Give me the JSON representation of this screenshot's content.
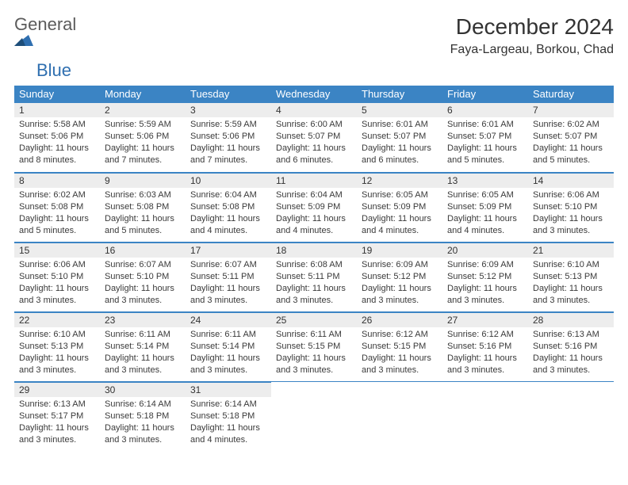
{
  "logo": {
    "part1": "General",
    "part2": "Blue"
  },
  "title": "December 2024",
  "location": "Faya-Largeau, Borkou, Chad",
  "colors": {
    "header_bg": "#3b84c4",
    "header_text": "#ffffff",
    "daynum_bg": "#ededed",
    "border": "#3b84c4",
    "text": "#3a3a3a",
    "logo_gray": "#5b5b5b",
    "logo_blue": "#2f6fb0"
  },
  "weekdays": [
    "Sunday",
    "Monday",
    "Tuesday",
    "Wednesday",
    "Thursday",
    "Friday",
    "Saturday"
  ],
  "weeks": [
    [
      {
        "n": "1",
        "sunrise": "5:58 AM",
        "sunset": "5:06 PM",
        "daylight": "11 hours and 8 minutes."
      },
      {
        "n": "2",
        "sunrise": "5:59 AM",
        "sunset": "5:06 PM",
        "daylight": "11 hours and 7 minutes."
      },
      {
        "n": "3",
        "sunrise": "5:59 AM",
        "sunset": "5:06 PM",
        "daylight": "11 hours and 7 minutes."
      },
      {
        "n": "4",
        "sunrise": "6:00 AM",
        "sunset": "5:07 PM",
        "daylight": "11 hours and 6 minutes."
      },
      {
        "n": "5",
        "sunrise": "6:01 AM",
        "sunset": "5:07 PM",
        "daylight": "11 hours and 6 minutes."
      },
      {
        "n": "6",
        "sunrise": "6:01 AM",
        "sunset": "5:07 PM",
        "daylight": "11 hours and 5 minutes."
      },
      {
        "n": "7",
        "sunrise": "6:02 AM",
        "sunset": "5:07 PM",
        "daylight": "11 hours and 5 minutes."
      }
    ],
    [
      {
        "n": "8",
        "sunrise": "6:02 AM",
        "sunset": "5:08 PM",
        "daylight": "11 hours and 5 minutes."
      },
      {
        "n": "9",
        "sunrise": "6:03 AM",
        "sunset": "5:08 PM",
        "daylight": "11 hours and 5 minutes."
      },
      {
        "n": "10",
        "sunrise": "6:04 AM",
        "sunset": "5:08 PM",
        "daylight": "11 hours and 4 minutes."
      },
      {
        "n": "11",
        "sunrise": "6:04 AM",
        "sunset": "5:09 PM",
        "daylight": "11 hours and 4 minutes."
      },
      {
        "n": "12",
        "sunrise": "6:05 AM",
        "sunset": "5:09 PM",
        "daylight": "11 hours and 4 minutes."
      },
      {
        "n": "13",
        "sunrise": "6:05 AM",
        "sunset": "5:09 PM",
        "daylight": "11 hours and 4 minutes."
      },
      {
        "n": "14",
        "sunrise": "6:06 AM",
        "sunset": "5:10 PM",
        "daylight": "11 hours and 3 minutes."
      }
    ],
    [
      {
        "n": "15",
        "sunrise": "6:06 AM",
        "sunset": "5:10 PM",
        "daylight": "11 hours and 3 minutes."
      },
      {
        "n": "16",
        "sunrise": "6:07 AM",
        "sunset": "5:10 PM",
        "daylight": "11 hours and 3 minutes."
      },
      {
        "n": "17",
        "sunrise": "6:07 AM",
        "sunset": "5:11 PM",
        "daylight": "11 hours and 3 minutes."
      },
      {
        "n": "18",
        "sunrise": "6:08 AM",
        "sunset": "5:11 PM",
        "daylight": "11 hours and 3 minutes."
      },
      {
        "n": "19",
        "sunrise": "6:09 AM",
        "sunset": "5:12 PM",
        "daylight": "11 hours and 3 minutes."
      },
      {
        "n": "20",
        "sunrise": "6:09 AM",
        "sunset": "5:12 PM",
        "daylight": "11 hours and 3 minutes."
      },
      {
        "n": "21",
        "sunrise": "6:10 AM",
        "sunset": "5:13 PM",
        "daylight": "11 hours and 3 minutes."
      }
    ],
    [
      {
        "n": "22",
        "sunrise": "6:10 AM",
        "sunset": "5:13 PM",
        "daylight": "11 hours and 3 minutes."
      },
      {
        "n": "23",
        "sunrise": "6:11 AM",
        "sunset": "5:14 PM",
        "daylight": "11 hours and 3 minutes."
      },
      {
        "n": "24",
        "sunrise": "6:11 AM",
        "sunset": "5:14 PM",
        "daylight": "11 hours and 3 minutes."
      },
      {
        "n": "25",
        "sunrise": "6:11 AM",
        "sunset": "5:15 PM",
        "daylight": "11 hours and 3 minutes."
      },
      {
        "n": "26",
        "sunrise": "6:12 AM",
        "sunset": "5:15 PM",
        "daylight": "11 hours and 3 minutes."
      },
      {
        "n": "27",
        "sunrise": "6:12 AM",
        "sunset": "5:16 PM",
        "daylight": "11 hours and 3 minutes."
      },
      {
        "n": "28",
        "sunrise": "6:13 AM",
        "sunset": "5:16 PM",
        "daylight": "11 hours and 3 minutes."
      }
    ],
    [
      {
        "n": "29",
        "sunrise": "6:13 AM",
        "sunset": "5:17 PM",
        "daylight": "11 hours and 3 minutes."
      },
      {
        "n": "30",
        "sunrise": "6:14 AM",
        "sunset": "5:18 PM",
        "daylight": "11 hours and 3 minutes."
      },
      {
        "n": "31",
        "sunrise": "6:14 AM",
        "sunset": "5:18 PM",
        "daylight": "11 hours and 4 minutes."
      },
      null,
      null,
      null,
      null
    ]
  ],
  "labels": {
    "sunrise": "Sunrise:",
    "sunset": "Sunset:",
    "daylight": "Daylight:"
  }
}
